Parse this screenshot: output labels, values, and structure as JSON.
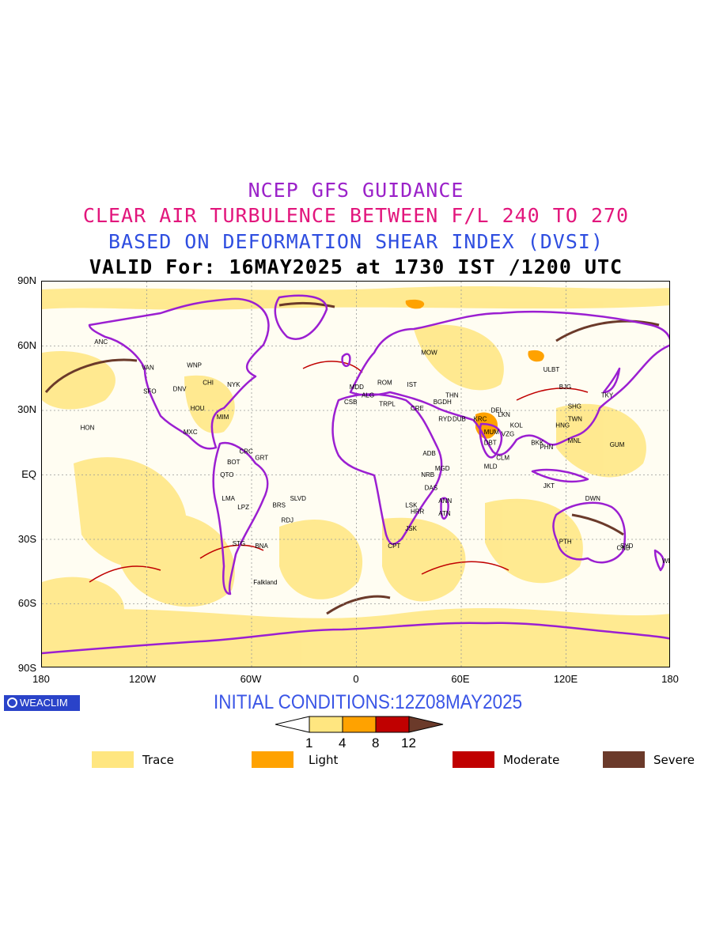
{
  "titles": {
    "line1": "NCEP GFS GUIDANCE",
    "line2": "CLEAR AIR TURBULENCE BETWEEN F/L 240 TO 270",
    "line3": "BASED ON DEFORMATION SHEAR INDEX (DVSI)",
    "line4": "VALID For: 16MAY2025 at 1730 IST /1200 UTC"
  },
  "colors": {
    "line1": "#9b22c9",
    "line2": "#e2167c",
    "line3": "#2f4ee0",
    "coast": "#9b1fd1",
    "trace": "#ffe680",
    "light": "#ffa200",
    "moderate": "#c00000",
    "severe": "#6b3a2a"
  },
  "axes": {
    "lat_labels": [
      "90N",
      "60N",
      "30N",
      "EQ",
      "30S",
      "60S",
      "90S"
    ],
    "lon_labels": [
      "180",
      "120W",
      "60W",
      "0",
      "60E",
      "120E",
      "180"
    ]
  },
  "brand": "WEACLIM",
  "initial_conditions": "INITIAL CONDITIONS:12Z08MAY2025",
  "colorbar": {
    "ticks": [
      "1",
      "4",
      "8",
      "12"
    ]
  },
  "legend": [
    {
      "label": "Trace",
      "color": "#ffe680"
    },
    {
      "label": "Light",
      "color": "#ffa200"
    },
    {
      "label": "Moderate",
      "color": "#c00000"
    },
    {
      "label": "Severe",
      "color": "#6b3a2a"
    }
  ],
  "stations": [
    {
      "name": "ANC",
      "lon": -150,
      "lat": 61
    },
    {
      "name": "VAN",
      "lon": -123,
      "lat": 49
    },
    {
      "name": "WNP",
      "lon": -97,
      "lat": 50
    },
    {
      "name": "SFO",
      "lon": -122,
      "lat": 38
    },
    {
      "name": "DNV",
      "lon": -105,
      "lat": 39
    },
    {
      "name": "CHI",
      "lon": -88,
      "lat": 42
    },
    {
      "name": "NYK",
      "lon": -74,
      "lat": 41
    },
    {
      "name": "MIM",
      "lon": -80,
      "lat": 26
    },
    {
      "name": "HOU",
      "lon": -95,
      "lat": 30
    },
    {
      "name": "HON",
      "lon": -158,
      "lat": 21
    },
    {
      "name": "MXC",
      "lon": -99,
      "lat": 19
    },
    {
      "name": "BOT",
      "lon": -74,
      "lat": 5
    },
    {
      "name": "CRC",
      "lon": -67,
      "lat": 10
    },
    {
      "name": "GRT",
      "lon": -58,
      "lat": 7
    },
    {
      "name": "QTO",
      "lon": -78,
      "lat": -1
    },
    {
      "name": "LMA",
      "lon": -77,
      "lat": -12
    },
    {
      "name": "LPZ",
      "lon": -68,
      "lat": -16
    },
    {
      "name": "BRS",
      "lon": -48,
      "lat": -15
    },
    {
      "name": "SLVD",
      "lon": -38,
      "lat": -12
    },
    {
      "name": "RDJ",
      "lon": -43,
      "lat": -22
    },
    {
      "name": "STG",
      "lon": -71,
      "lat": -33
    },
    {
      "name": "BNA",
      "lon": -58,
      "lat": -34
    },
    {
      "name": "Falkland",
      "lon": -59,
      "lat": -51
    },
    {
      "name": "MDD",
      "lon": -4,
      "lat": 40
    },
    {
      "name": "CSB",
      "lon": -7,
      "lat": 33
    },
    {
      "name": "ALG",
      "lon": 3,
      "lat": 36
    },
    {
      "name": "TRPL",
      "lon": 13,
      "lat": 32
    },
    {
      "name": "ROM",
      "lon": 12,
      "lat": 42
    },
    {
      "name": "IST",
      "lon": 29,
      "lat": 41
    },
    {
      "name": "MOW",
      "lon": 37,
      "lat": 56
    },
    {
      "name": "CRE",
      "lon": 31,
      "lat": 30
    },
    {
      "name": "ADB",
      "lon": 38,
      "lat": 9
    },
    {
      "name": "NRB",
      "lon": 37,
      "lat": -1
    },
    {
      "name": "DAS",
      "lon": 39,
      "lat": -7
    },
    {
      "name": "MGD",
      "lon": 45,
      "lat": 2
    },
    {
      "name": "ANN",
      "lon": 47,
      "lat": -13
    },
    {
      "name": "ATN",
      "lon": 47,
      "lat": -19
    },
    {
      "name": "LSK",
      "lon": 28,
      "lat": -15
    },
    {
      "name": "HRR",
      "lon": 31,
      "lat": -18
    },
    {
      "name": "JSK",
      "lon": 28,
      "lat": -26
    },
    {
      "name": "CPT",
      "lon": 18,
      "lat": -34
    },
    {
      "name": "THN",
      "lon": 51,
      "lat": 36
    },
    {
      "name": "BGDH",
      "lon": 44,
      "lat": 33
    },
    {
      "name": "RYD",
      "lon": 47,
      "lat": 25
    },
    {
      "name": "DUB",
      "lon": 55,
      "lat": 25
    },
    {
      "name": "KRC",
      "lon": 67,
      "lat": 25
    },
    {
      "name": "DEL",
      "lon": 77,
      "lat": 29
    },
    {
      "name": "LKN",
      "lon": 81,
      "lat": 27
    },
    {
      "name": "MUM",
      "lon": 73,
      "lat": 19
    },
    {
      "name": "DBT",
      "lon": 73,
      "lat": 14
    },
    {
      "name": "VZG",
      "lon": 83,
      "lat": 18
    },
    {
      "name": "KOL",
      "lon": 88,
      "lat": 22
    },
    {
      "name": "CLM",
      "lon": 80,
      "lat": 7
    },
    {
      "name": "MLD",
      "lon": 73,
      "lat": 3
    },
    {
      "name": "BKK",
      "lon": 100,
      "lat": 14
    },
    {
      "name": "PHN",
      "lon": 105,
      "lat": 12
    },
    {
      "name": "HNG",
      "lon": 114,
      "lat": 22
    },
    {
      "name": "MNL",
      "lon": 121,
      "lat": 15
    },
    {
      "name": "TWN",
      "lon": 121,
      "lat": 25
    },
    {
      "name": "SHG",
      "lon": 121,
      "lat": 31
    },
    {
      "name": "BJG",
      "lon": 116,
      "lat": 40
    },
    {
      "name": "TKY",
      "lon": 140,
      "lat": 36
    },
    {
      "name": "ULBT",
      "lon": 107,
      "lat": 48
    },
    {
      "name": "GUM",
      "lon": 145,
      "lat": 13
    },
    {
      "name": "JKT",
      "lon": 107,
      "lat": -6
    },
    {
      "name": "DWN",
      "lon": 131,
      "lat": -12
    },
    {
      "name": "PTH",
      "lon": 116,
      "lat": -32
    },
    {
      "name": "SYD",
      "lon": 151,
      "lat": -34
    },
    {
      "name": "CNB",
      "lon": 149,
      "lat": -35
    },
    {
      "name": "WLT",
      "lon": 175,
      "lat": -41
    }
  ]
}
